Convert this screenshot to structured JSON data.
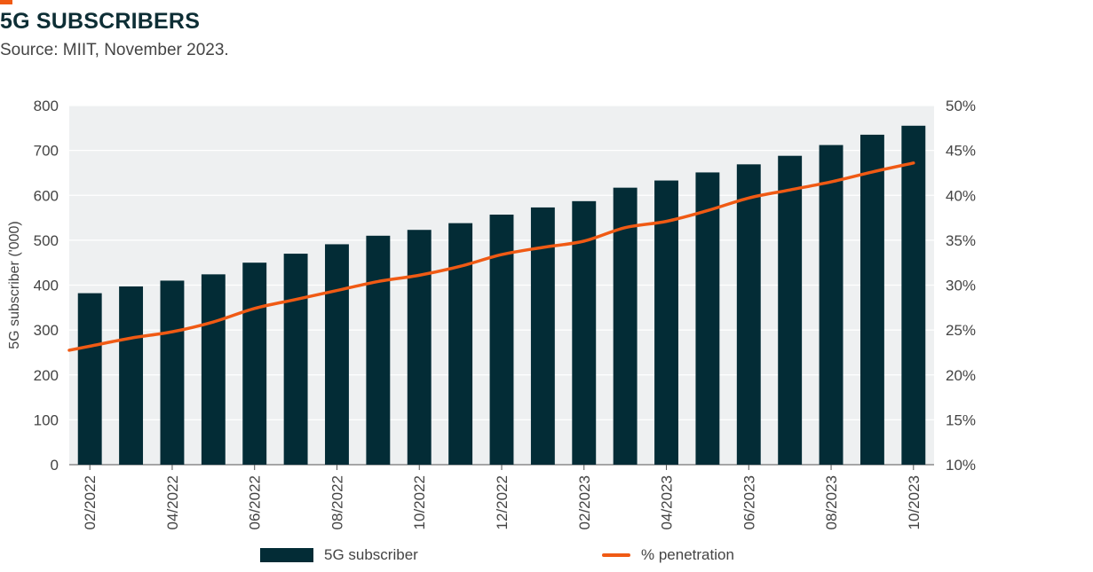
{
  "header": {
    "title": "5G SUBSCRIBERS",
    "source": "Source: MIIT, November 2023."
  },
  "colors": {
    "bar": "#032c36",
    "line": "#f05a14",
    "accent": "#f05a14",
    "title": "#0d2e35",
    "plot_bg": "#eef0f1",
    "grid": "#ffffff"
  },
  "legend": {
    "bar_label": "5G subscriber",
    "line_label": "% penetration"
  },
  "chart_data": {
    "type": "bar",
    "categories": [
      "02/2022",
      "03/2022",
      "04/2022",
      "05/2022",
      "06/2022",
      "07/2022",
      "08/2022",
      "09/2022",
      "10/2022",
      "11/2022",
      "12/2022",
      "01/2023",
      "02/2023",
      "03/2023",
      "04/2023",
      "05/2023",
      "06/2023",
      "07/2023",
      "08/2023",
      "09/2023",
      "10/2023"
    ],
    "x_tick_labels": [
      "02/2022",
      "",
      "04/2022",
      "",
      "06/2022",
      "",
      "08/2022",
      "",
      "10/2022",
      "",
      "12/2022",
      "",
      "02/2023",
      "",
      "04/2023",
      "",
      "06/2023",
      "",
      "08/2023",
      "",
      "10/2023"
    ],
    "series": [
      {
        "name": "5G subscriber",
        "type": "bar",
        "axis": "left",
        "values": [
          382,
          397,
          410,
          424,
          450,
          470,
          491,
          510,
          523,
          538,
          557,
          573,
          587,
          617,
          633,
          651,
          669,
          688,
          712,
          735,
          755
        ]
      },
      {
        "name": "% penetration",
        "type": "line",
        "axis": "right",
        "values": [
          23.2,
          24.1,
          24.8,
          25.9,
          27.4,
          28.4,
          29.4,
          30.4,
          31.1,
          32.1,
          33.4,
          34.2,
          34.9,
          36.4,
          37.1,
          38.3,
          39.7,
          40.6,
          41.5,
          42.6,
          43.6
        ]
      }
    ],
    "ylabel": "5G subscriber ('000)",
    "ylim": [
      0,
      800
    ],
    "y_ticks": [
      "0",
      "100",
      "200",
      "300",
      "400",
      "500",
      "600",
      "700",
      "800"
    ],
    "y2lim": [
      10,
      50
    ],
    "y2_ticks": [
      "10%",
      "15%",
      "20%",
      "25%",
      "30%",
      "35%",
      "40%",
      "45%",
      "50%"
    ],
    "grid": true,
    "legend_position": "bottom"
  }
}
